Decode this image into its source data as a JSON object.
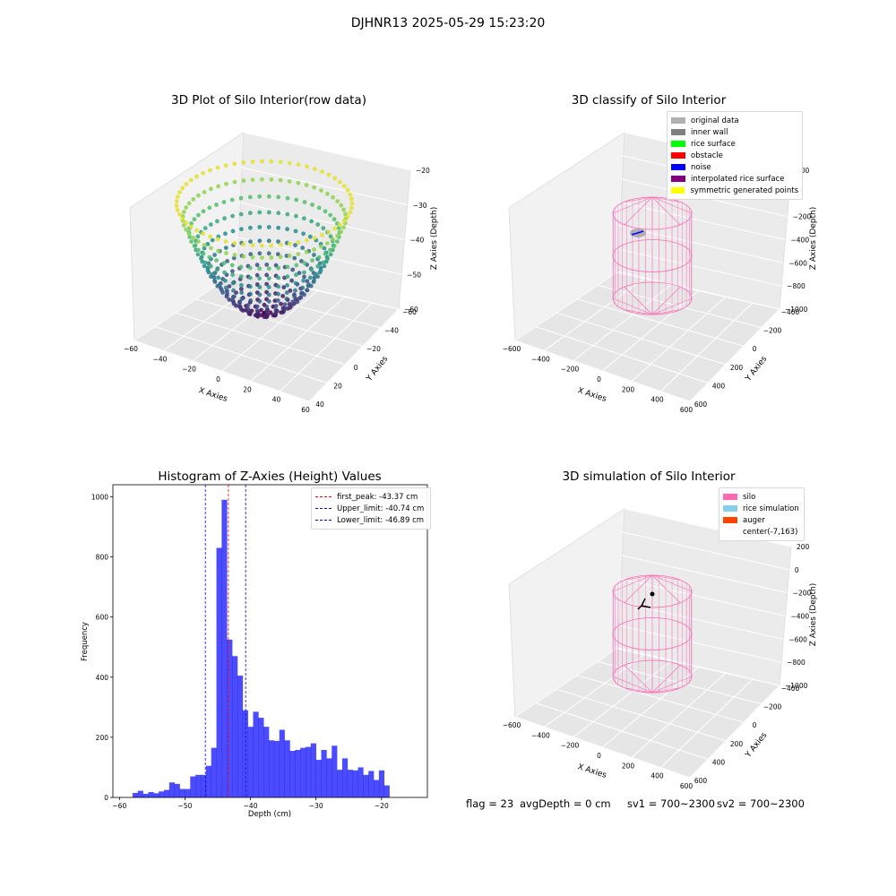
{
  "suptitle": "DJHNR13 2025-05-29 15:23:20",
  "plots": {
    "raw": {
      "title": "3D Plot of Silo Interior(row data)",
      "xlabel": "X Axies",
      "ylabel": "Y Axies",
      "zlabel": "Z Axies (Depth)",
      "x_ticks": [
        "−60",
        "−40",
        "−20",
        "0",
        "20",
        "40",
        "60"
      ],
      "y_ticks": [
        "−60",
        "−40",
        "−20",
        "0",
        "20",
        "40"
      ],
      "z_ticks": [
        "−20",
        "−30",
        "−40",
        "−50",
        "−60"
      ],
      "colormap": "viridis"
    },
    "classify": {
      "title": "3D classify of Silo Interior",
      "xlabel": "X Axies",
      "ylabel": "Y Axies",
      "zlabel": "Z Axies (Depth)",
      "x_ticks": [
        "−600",
        "−400",
        "−200",
        "0",
        "200",
        "400",
        "600"
      ],
      "y_ticks": [
        "−400",
        "−200",
        "0",
        "200",
        "400",
        "600"
      ],
      "z_ticks": [
        "200",
        "0",
        "−200",
        "−400",
        "−600",
        "−800",
        "−1000"
      ],
      "legend": [
        {
          "label": "original data",
          "color": "#b0b0b0"
        },
        {
          "label": "inner wall",
          "color": "#808080"
        },
        {
          "label": "rice surface",
          "color": "#00ff00"
        },
        {
          "label": "obstacle",
          "color": "#ff0000"
        },
        {
          "label": "noise",
          "color": "#0000ff"
        },
        {
          "label": "interpolated rice surface",
          "color": "#800080"
        },
        {
          "label": "symmetric generated points",
          "color": "#ffff00"
        }
      ]
    },
    "simulation": {
      "title": "3D simulation of Silo Interior",
      "xlabel": "X Axies",
      "ylabel": "Y Axies",
      "zlabel": "Z Axies (Depth)",
      "x_ticks": [
        "−600",
        "−400",
        "−200",
        "0",
        "200",
        "400",
        "600"
      ],
      "y_ticks": [
        "−400",
        "−200",
        "0",
        "200",
        "400",
        "600"
      ],
      "z_ticks": [
        "200",
        "0",
        "−200",
        "−400",
        "−600",
        "−800",
        "−1000"
      ],
      "legend": [
        {
          "label": "silo",
          "color": "#ff69b4"
        },
        {
          "label": "rice simulation",
          "color": "#87ceeb"
        },
        {
          "label": "auger",
          "color": "#ff4500"
        },
        {
          "label": "center(-7,163)",
          "color": ""
        }
      ]
    }
  },
  "chart_data": {
    "type": "bar",
    "title": "Histogram of Z-Axies (Height) Values",
    "xlabel": "Depth (cm)",
    "ylabel": "Frequency",
    "xlim": [
      -61,
      -13
    ],
    "ylim": [
      0,
      1040
    ],
    "x_ticks": [
      -60,
      -50,
      -40,
      -30,
      -20
    ],
    "y_ticks": [
      0,
      200,
      400,
      600,
      800,
      1000
    ],
    "bar_color": "#0000ff",
    "bin_start": -58,
    "bin_width": 0.8,
    "values": [
      15,
      22,
      12,
      18,
      14,
      20,
      25,
      50,
      45,
      28,
      28,
      70,
      75,
      75,
      105,
      165,
      830,
      990,
      525,
      470,
      405,
      290,
      235,
      285,
      265,
      235,
      190,
      188,
      225,
      190,
      155,
      158,
      165,
      168,
      180,
      125,
      158,
      130,
      172,
      92,
      130,
      92,
      90,
      100,
      75,
      88,
      58,
      90,
      40
    ],
    "lines": [
      {
        "label": "first_peak: -43.37 cm",
        "x": -43.37,
        "color": "#ff0000"
      },
      {
        "label": "Upper_limit: -40.74 cm",
        "x": -40.74,
        "color": "#0000ff"
      },
      {
        "label": "Lower_limit: -46.89 cm",
        "x": -46.89,
        "color": "#0000ff"
      }
    ]
  },
  "footer": {
    "flag": "flag = 23",
    "avg_depth": "avgDepth = 0 cm",
    "sv1": "sv1 = 700~2300",
    "sv2": "sv2 = 700~2300"
  }
}
